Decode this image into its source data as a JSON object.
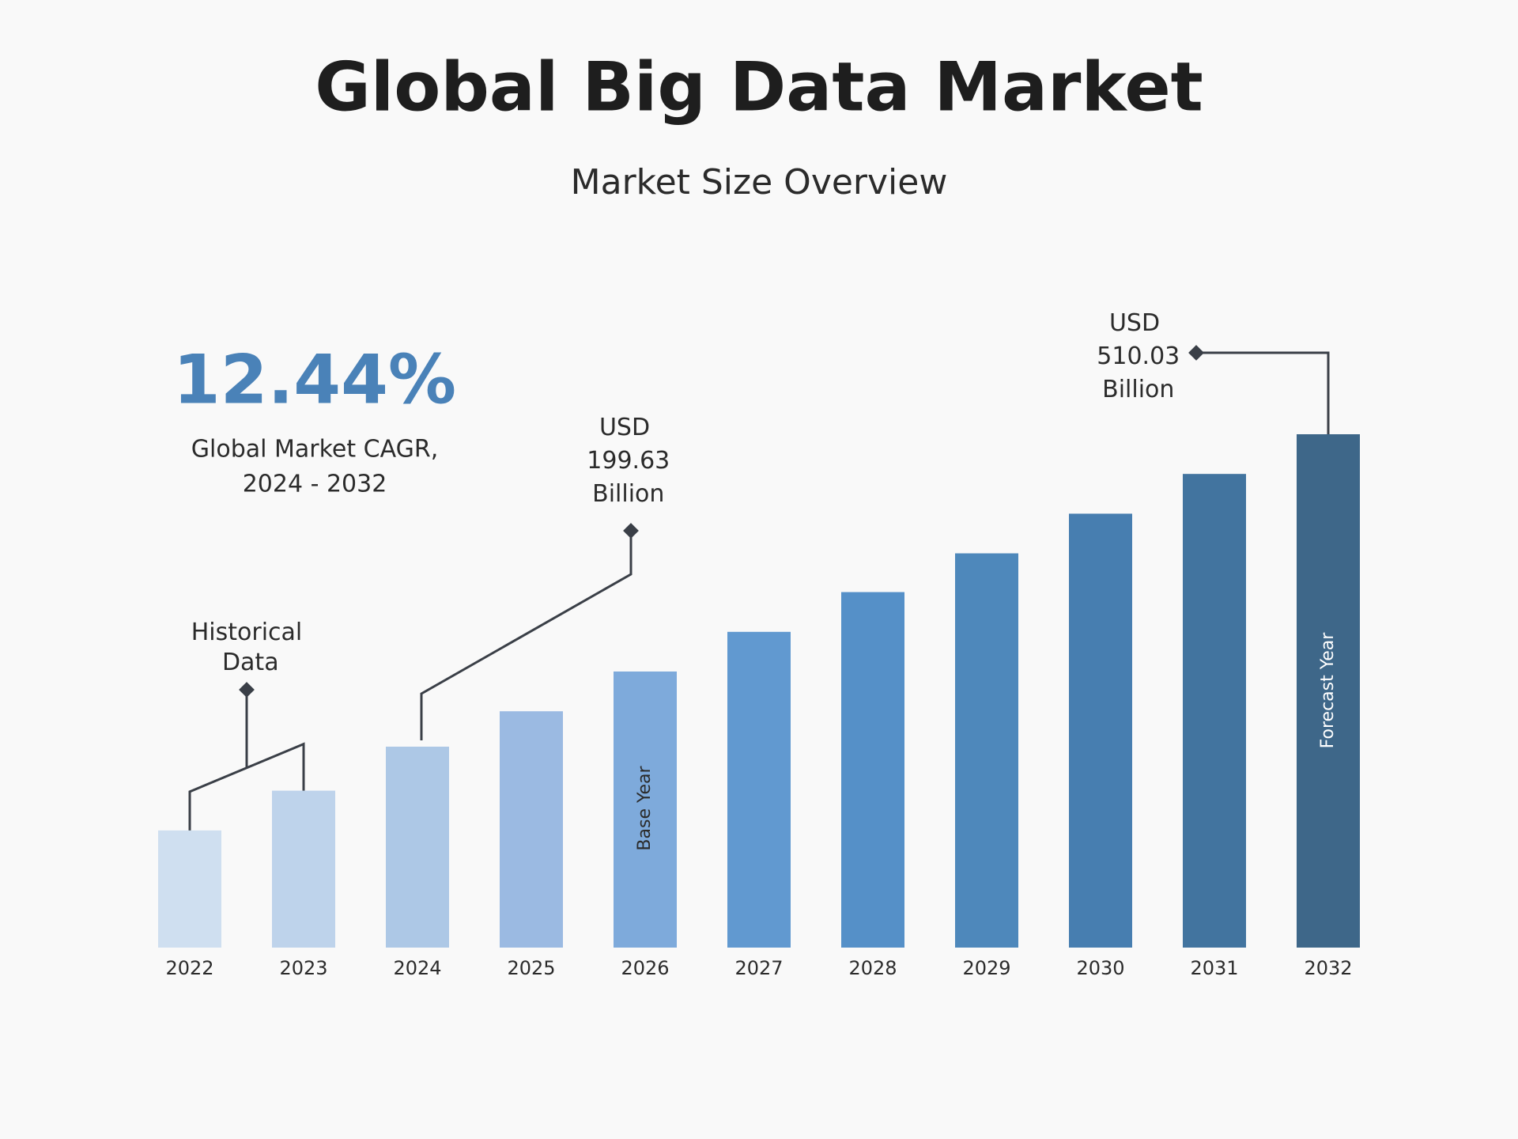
{
  "chart_data": {
    "type": "bar",
    "title": "Global Big Data Market",
    "subtitle": "Market Size Overview",
    "cagr": "12.44%",
    "cagr_label": [
      "Global Market CAGR,",
      "2024 - 2032"
    ],
    "categories": [
      "2022",
      "2023",
      "2024",
      "2025",
      "2026",
      "2027",
      "2028",
      "2029",
      "2030",
      "2031",
      "2032"
    ],
    "values": [
      116.4,
      155.9,
      199.63,
      234.8,
      274.3,
      313.7,
      353.2,
      391.7,
      431.1,
      470.6,
      510.03
    ],
    "value_labels": [
      null,
      null,
      "USD 199.63 Billion",
      null,
      null,
      null,
      null,
      null,
      null,
      null,
      "USD 510.03 Billion"
    ],
    "bar_labels": [
      null,
      null,
      null,
      null,
      "Base Year",
      null,
      null,
      null,
      null,
      null,
      "Forecast Year"
    ],
    "group_annotation": "Historical Data",
    "colors": [
      "#cfdff0",
      "#bed3eb",
      "#adc8e6",
      "#9bbae2",
      "#7eaadb",
      "#6199d0",
      "#5590c8",
      "#4e88bb",
      "#477eb0",
      "#42749f",
      "#3e6789"
    ]
  }
}
